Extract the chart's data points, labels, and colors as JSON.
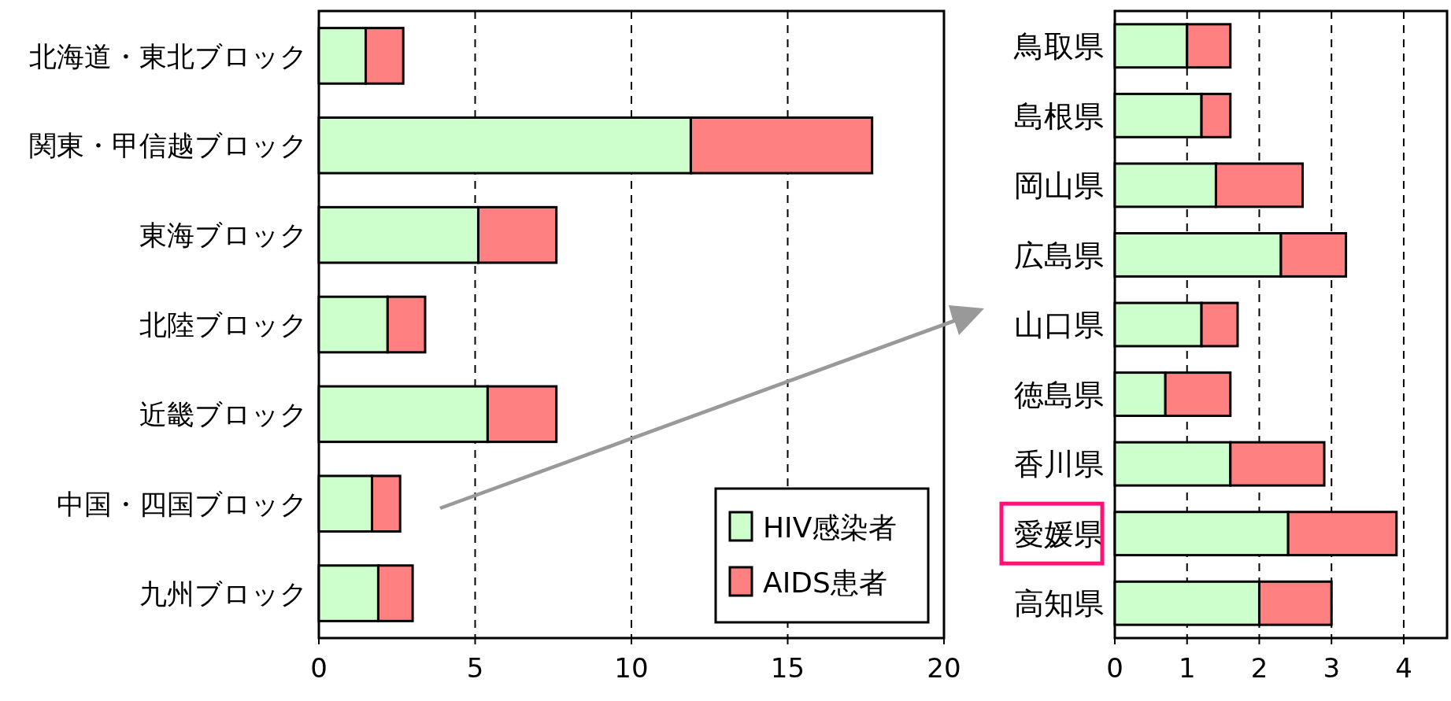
{
  "chart_data": [
    {
      "type": "bar",
      "orientation": "horizontal",
      "stacked": true,
      "categories": [
        "北海道・東北ブロック",
        "関東・甲信越ブロック",
        "東海ブロック",
        "北陸ブロック",
        "近畿ブロック",
        "中国・四国ブロック",
        "九州ブロック"
      ],
      "series": [
        {
          "name": "HIV感染者",
          "color": "#ccffcc",
          "values": [
            1.5,
            11.9,
            5.1,
            2.2,
            5.4,
            1.7,
            1.9
          ]
        },
        {
          "name": "AIDS患者",
          "color": "#ff8080",
          "values": [
            1.2,
            5.8,
            2.5,
            1.2,
            2.2,
            0.9,
            1.1
          ]
        }
      ],
      "xlim": [
        0,
        20
      ],
      "xticks": [
        0,
        5,
        10,
        15,
        20
      ],
      "grid": "x",
      "legend": "bottom right"
    },
    {
      "type": "bar",
      "orientation": "horizontal",
      "stacked": true,
      "categories": [
        "鳥取県",
        "島根県",
        "岡山県",
        "広島県",
        "山口県",
        "徳島県",
        "香川県",
        "愛媛県",
        "高知県"
      ],
      "series": [
        {
          "color": "#ccffcc",
          "values": [
            1.0,
            1.2,
            1.4,
            2.3,
            1.2,
            0.7,
            1.6,
            2.4,
            2.0
          ]
        },
        {
          "color": "#ff8080",
          "values": [
            0.6,
            0.4,
            1.2,
            0.9,
            0.5,
            0.9,
            1.3,
            1.5,
            1.0
          ]
        }
      ],
      "xlim": [
        0,
        4.6
      ],
      "xticks": [
        0,
        1,
        2,
        3,
        4
      ],
      "grid": "x"
    }
  ]
}
